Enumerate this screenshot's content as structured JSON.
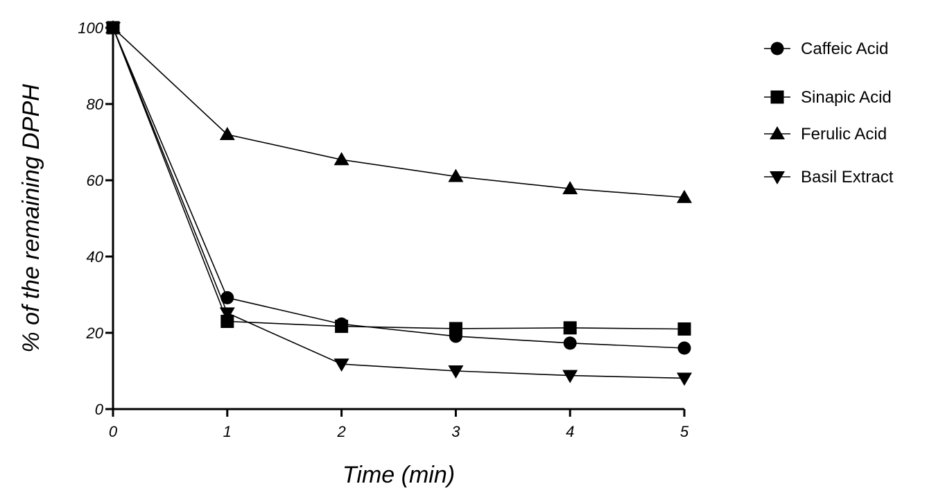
{
  "chart_data": {
    "type": "line",
    "title": "",
    "xlabel": "Time (min)",
    "ylabel": "% of the remaining DPPH",
    "x": [
      0,
      1,
      2,
      3,
      4,
      5
    ],
    "xlim": [
      0,
      5
    ],
    "ylim": [
      0,
      100
    ],
    "xticks": [
      "0",
      "1",
      "2",
      "3",
      "4",
      "5"
    ],
    "yticks": [
      "0",
      "20",
      "40",
      "60",
      "80",
      "100"
    ],
    "grid": false,
    "legend_position": "top-right",
    "series": [
      {
        "name": "Caffeic Acid",
        "marker": "circle",
        "values": [
          100,
          29.2,
          22.3,
          19.1,
          17.3,
          16.0
        ]
      },
      {
        "name": "Sinapic Acid",
        "marker": "square",
        "values": [
          100,
          23.0,
          21.7,
          21.1,
          21.3,
          21.0
        ]
      },
      {
        "name": "Ferulic Acid",
        "marker": "triangle-up",
        "values": [
          100,
          72.0,
          65.4,
          61.0,
          57.8,
          55.5
        ]
      },
      {
        "name": "Basil Extract",
        "marker": "triangle-down",
        "values": [
          100,
          25.2,
          11.8,
          10.0,
          8.8,
          8.1
        ]
      }
    ]
  }
}
